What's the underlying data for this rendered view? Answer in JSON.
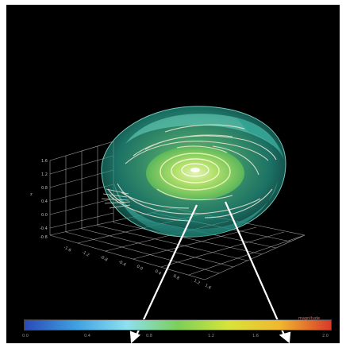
{
  "image": {
    "subject": "3D volume rendering",
    "colors": {
      "background": "#000000",
      "isosurface": "#2fb7a0",
      "core": "#8fdc5a",
      "streamlines": "#f0ead6",
      "grid": "#cfcfcf",
      "arrow": "#ffffff"
    }
  },
  "colorbar": {
    "label": "magnitude",
    "ticks": [
      "0.0",
      "0.4",
      "0.8",
      "1.2",
      "1.6",
      "2.0"
    ],
    "stops": [
      "#2a4ab8",
      "#3fa0e0",
      "#8ee0f0",
      "#7ccf5a",
      "#d8e43a",
      "#f0b72f",
      "#d83a2a"
    ]
  },
  "axis": {
    "y_labels": [
      "1.6",
      "1.2",
      "0.8",
      "0.4",
      "0.0",
      "-0.4",
      "-0.8"
    ],
    "z_label": "z",
    "x_labels": [
      "-1.6",
      "-1.2",
      "-0.8",
      "-0.4",
      "0.0",
      "0.4",
      "0.8",
      "1.2",
      "1.6"
    ]
  }
}
